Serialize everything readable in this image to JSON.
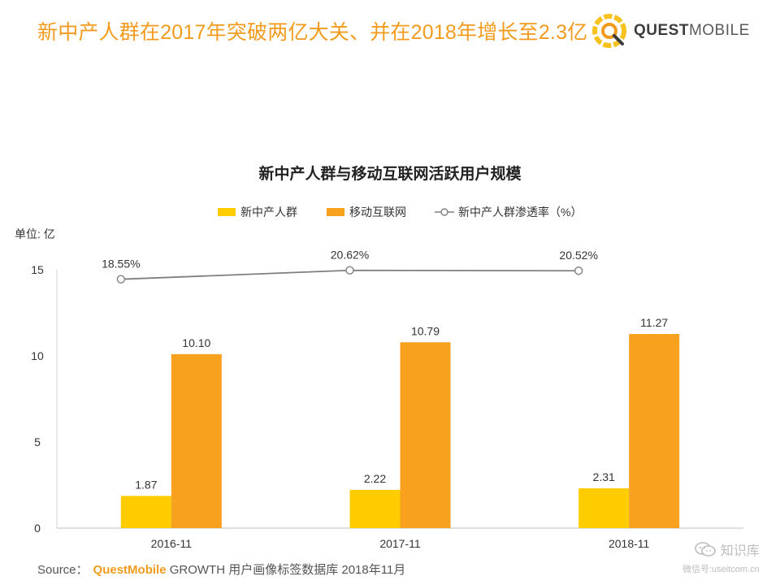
{
  "header": {
    "headline": "新中产人群在2017年突破两亿大关、并在2018年增长至2.3亿",
    "brand_strong": "QUEST",
    "brand_light": "MOBILE"
  },
  "colors": {
    "accent": "#f29b1e",
    "series_new_middle": "#ffcc00",
    "series_mobile": "#f7a11f",
    "line": "#7f7f7f"
  },
  "chart_data": {
    "type": "bar",
    "title": "新中产人群与移动互联网活跃用户规模",
    "unit_label": "单位: 亿",
    "categories": [
      "2016-11",
      "2017-11",
      "2018-11"
    ],
    "ylim": [
      0,
      15
    ],
    "yticks": [
      0,
      5,
      10,
      15
    ],
    "series": [
      {
        "name": "新中产人群",
        "kind": "bar",
        "values": [
          1.87,
          2.22,
          2.31
        ],
        "labels": [
          "1.87",
          "2.22",
          "2.31"
        ]
      },
      {
        "name": "移动互联网",
        "kind": "bar",
        "values": [
          10.1,
          10.79,
          11.27
        ],
        "labels": [
          "10.10",
          "10.79",
          "11.27"
        ]
      },
      {
        "name": "新中产人群渗透率（%）",
        "kind": "line",
        "values": [
          18.55,
          20.62,
          20.52
        ],
        "labels": [
          "18.55%",
          "20.62%",
          "20.52%"
        ]
      }
    ],
    "legend_position": "top-center"
  },
  "footer": {
    "source_prefix": "Source：",
    "source_brand": "QuestMobile",
    "source_rest": " GROWTH 用户画像标签数据库 2018年11月"
  },
  "watermark": {
    "name": "知识库",
    "sub": "微信号:useitcom.cn"
  }
}
